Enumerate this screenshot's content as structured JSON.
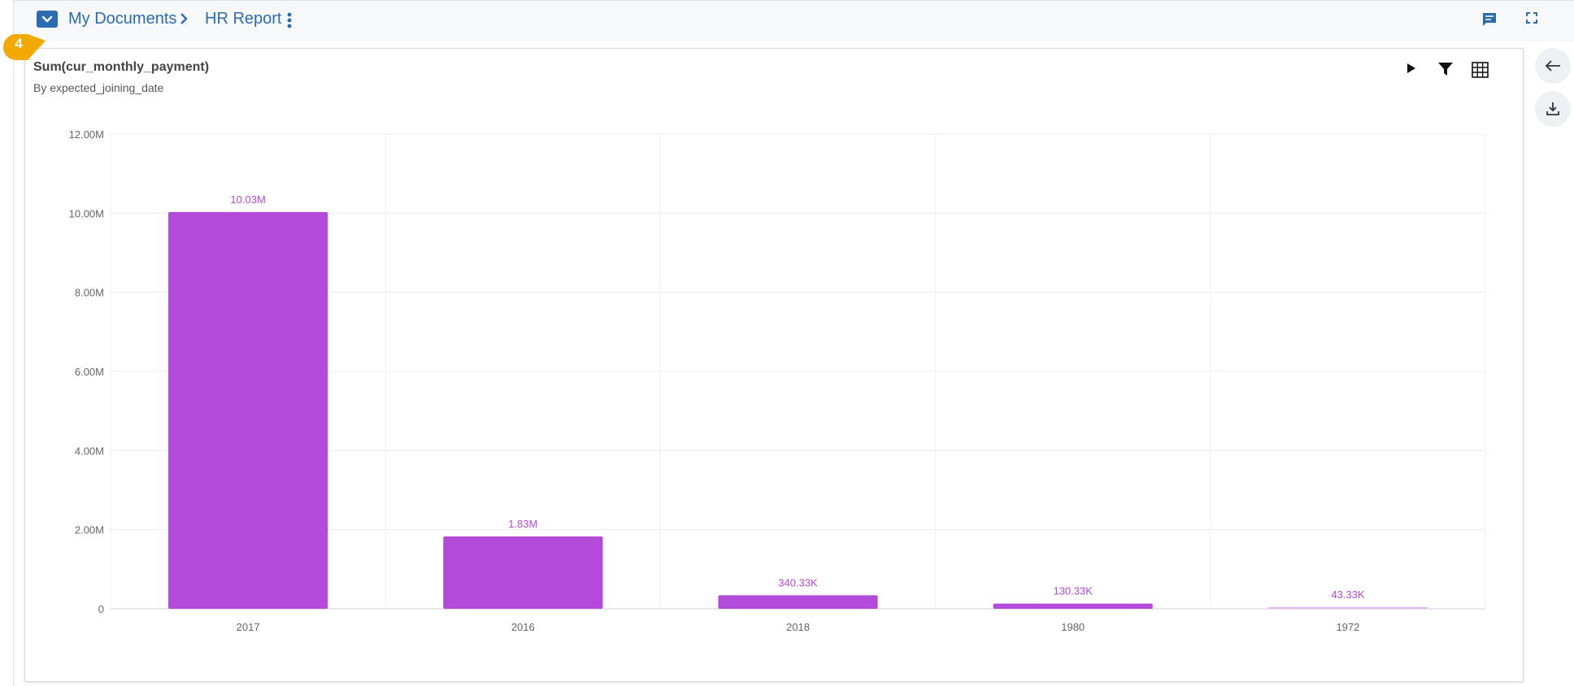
{
  "breadcrumb": {
    "folder": "My Documents",
    "report": "HR Report"
  },
  "icons": {
    "folder": "folder-dropdown-icon",
    "separator": "chevron-right-icon",
    "menu": "kebab-menu-icon",
    "comment": "comment-icon",
    "fullscreen": "fullscreen-icon",
    "play": "play-icon",
    "filter": "filter-icon",
    "grid": "grid-view-icon",
    "back": "arrow-left-icon",
    "download": "download-icon"
  },
  "step_marker": "4",
  "colors": {
    "accent": "#2b6cb0",
    "marker": "#f2a900",
    "bar": "#b44ad9",
    "bar_faint": "#e3b6f3",
    "label": "#b44ad9"
  },
  "chart_data": {
    "type": "bar",
    "title": "Sum(cur_monthly_payment)",
    "subtitle": "By expected_joining_date",
    "categories": [
      "2017",
      "2016",
      "2018",
      "1980",
      "1972"
    ],
    "values": [
      10030000,
      1830000,
      340330,
      130330,
      43330
    ],
    "data_labels": [
      "10.03M",
      "1.83M",
      "340.33K",
      "130.33K",
      "43.33K"
    ],
    "yticks": [
      0,
      2000000,
      4000000,
      6000000,
      8000000,
      10000000,
      12000000
    ],
    "ytick_labels": [
      "0",
      "2.00M",
      "4.00M",
      "6.00M",
      "8.00M",
      "10.00M",
      "12.00M"
    ],
    "ylim": [
      0,
      12000000
    ],
    "grid": true,
    "legend": "none"
  }
}
